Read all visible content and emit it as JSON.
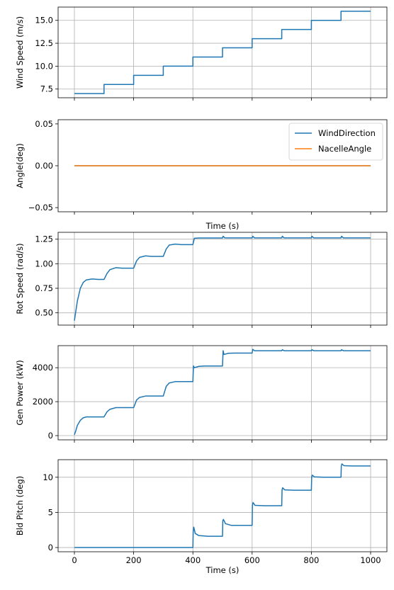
{
  "chart_data": [
    {
      "type": "line",
      "ylabel": "Wind Speed (m/s)",
      "xlim": [
        -55,
        1055
      ],
      "ylim": [
        6.55,
        16.45
      ],
      "xticks": [
        0,
        200,
        400,
        600,
        800,
        1000
      ],
      "xtick_labels_shown": false,
      "yticks": [
        7.5,
        10.0,
        12.5,
        15.0
      ],
      "ytick_labels": [
        "7.5",
        "10.0",
        "12.5",
        "15.0"
      ],
      "grid": true,
      "series": [
        {
          "color": "#1f77b4",
          "x": [
            0,
            100,
            100,
            200,
            200,
            300,
            300,
            400,
            400,
            500,
            500,
            600,
            600,
            700,
            700,
            800,
            800,
            900,
            900,
            1000
          ],
          "y": [
            7,
            7,
            8,
            8,
            9,
            9,
            10,
            10,
            11,
            11,
            12,
            12,
            13,
            13,
            14,
            14,
            15,
            15,
            16,
            16
          ]
        }
      ]
    },
    {
      "type": "line",
      "ylabel": "Angle(deg)",
      "xlabel": "Time (s)",
      "xlim": [
        -55,
        1055
      ],
      "ylim": [
        -0.055,
        0.055
      ],
      "xticks": [
        0,
        200,
        400,
        600,
        800,
        1000
      ],
      "xtick_labels_shown": false,
      "yticks": [
        -0.05,
        0.0,
        0.05
      ],
      "ytick_labels": [
        "−0.05",
        "0.00",
        "0.05"
      ],
      "grid": false,
      "legend": "top-right",
      "series": [
        {
          "name": "WindDirection",
          "color": "#1f77b4",
          "x": [
            0,
            1000
          ],
          "y": [
            0,
            0
          ]
        },
        {
          "name": "NacelleAngle",
          "color": "#ff7f0e",
          "x": [
            0,
            1000
          ],
          "y": [
            0,
            0
          ]
        }
      ]
    },
    {
      "type": "line",
      "ylabel": "Rot Speed (rad/s)",
      "xlim": [
        -55,
        1055
      ],
      "ylim": [
        0.375,
        1.32
      ],
      "xticks": [
        0,
        200,
        400,
        600,
        800,
        1000
      ],
      "xtick_labels_shown": false,
      "yticks": [
        0.5,
        0.75,
        1.0,
        1.25
      ],
      "ytick_labels": [
        "0.50",
        "0.75",
        "1.00",
        "1.25"
      ],
      "grid": true,
      "series": [
        {
          "color": "#1f77b4",
          "x": [
            0,
            10,
            20,
            30,
            40,
            60,
            80,
            100,
            110,
            120,
            140,
            160,
            200,
            210,
            220,
            240,
            260,
            300,
            310,
            320,
            340,
            360,
            400,
            405,
            420,
            500,
            502,
            508,
            600,
            602,
            608,
            700,
            702,
            708,
            800,
            802,
            808,
            900,
            902,
            908,
            1000
          ],
          "y": [
            0.42,
            0.62,
            0.75,
            0.81,
            0.835,
            0.845,
            0.84,
            0.84,
            0.9,
            0.94,
            0.96,
            0.955,
            0.955,
            1.03,
            1.065,
            1.08,
            1.075,
            1.075,
            1.15,
            1.19,
            1.2,
            1.195,
            1.195,
            1.26,
            1.262,
            1.262,
            1.28,
            1.263,
            1.263,
            1.28,
            1.263,
            1.263,
            1.28,
            1.263,
            1.263,
            1.28,
            1.263,
            1.263,
            1.28,
            1.263,
            1.263
          ]
        }
      ]
    },
    {
      "type": "line",
      "ylabel": "Gen Power (kW)",
      "xlim": [
        -55,
        1055
      ],
      "ylim": [
        -250,
        5300
      ],
      "xticks": [
        0,
        200,
        400,
        600,
        800,
        1000
      ],
      "xtick_labels_shown": false,
      "yticks": [
        0,
        2000,
        4000
      ],
      "ytick_labels": [
        "0",
        "2000",
        "4000"
      ],
      "grid": true,
      "series": [
        {
          "color": "#1f77b4",
          "x": [
            0,
            5,
            10,
            20,
            30,
            40,
            60,
            80,
            100,
            110,
            120,
            140,
            160,
            200,
            210,
            220,
            240,
            260,
            300,
            310,
            320,
            340,
            360,
            400,
            402,
            405,
            420,
            440,
            500,
            502,
            505,
            520,
            540,
            600,
            602,
            608,
            700,
            702,
            708,
            800,
            802,
            808,
            900,
            902,
            908,
            1000
          ],
          "y": [
            50,
            300,
            600,
            900,
            1050,
            1100,
            1100,
            1100,
            1100,
            1400,
            1550,
            1650,
            1650,
            1650,
            2100,
            2250,
            2330,
            2330,
            2330,
            2900,
            3100,
            3180,
            3180,
            3180,
            4100,
            4000,
            4080,
            4100,
            4100,
            5000,
            4780,
            4850,
            4860,
            4860,
            5080,
            5000,
            5000,
            5060,
            5000,
            5000,
            5060,
            5000,
            5000,
            5060,
            5000,
            5000
          ]
        }
      ]
    },
    {
      "type": "line",
      "ylabel": "Bld Pitch (deg)",
      "xlabel": "Time (s)",
      "xlim": [
        -55,
        1055
      ],
      "ylim": [
        -0.6,
        12.5
      ],
      "xticks": [
        0,
        200,
        400,
        600,
        800,
        1000
      ],
      "xtick_labels_shown": true,
      "xtick_labels": [
        "0",
        "200",
        "400",
        "600",
        "800",
        "1000"
      ],
      "yticks": [
        0,
        5,
        10
      ],
      "ytick_labels": [
        "0",
        "5",
        "10"
      ],
      "grid": true,
      "series": [
        {
          "color": "#1f77b4",
          "x": [
            0,
            400,
            401,
            403,
            408,
            420,
            450,
            500,
            501,
            503,
            510,
            530,
            600,
            601,
            603,
            610,
            640,
            700,
            701,
            703,
            710,
            740,
            800,
            801,
            803,
            810,
            840,
            900,
            901,
            903,
            910,
            940,
            1000
          ],
          "y": [
            0,
            0,
            2.2,
            2.9,
            2.0,
            1.7,
            1.6,
            1.6,
            3.8,
            4.0,
            3.4,
            3.15,
            3.15,
            6.0,
            6.4,
            6.0,
            5.95,
            5.95,
            8.2,
            8.5,
            8.2,
            8.15,
            8.15,
            10.0,
            10.3,
            10.05,
            10.0,
            10.0,
            11.6,
            11.9,
            11.65,
            11.6,
            11.6
          ]
        }
      ]
    }
  ]
}
